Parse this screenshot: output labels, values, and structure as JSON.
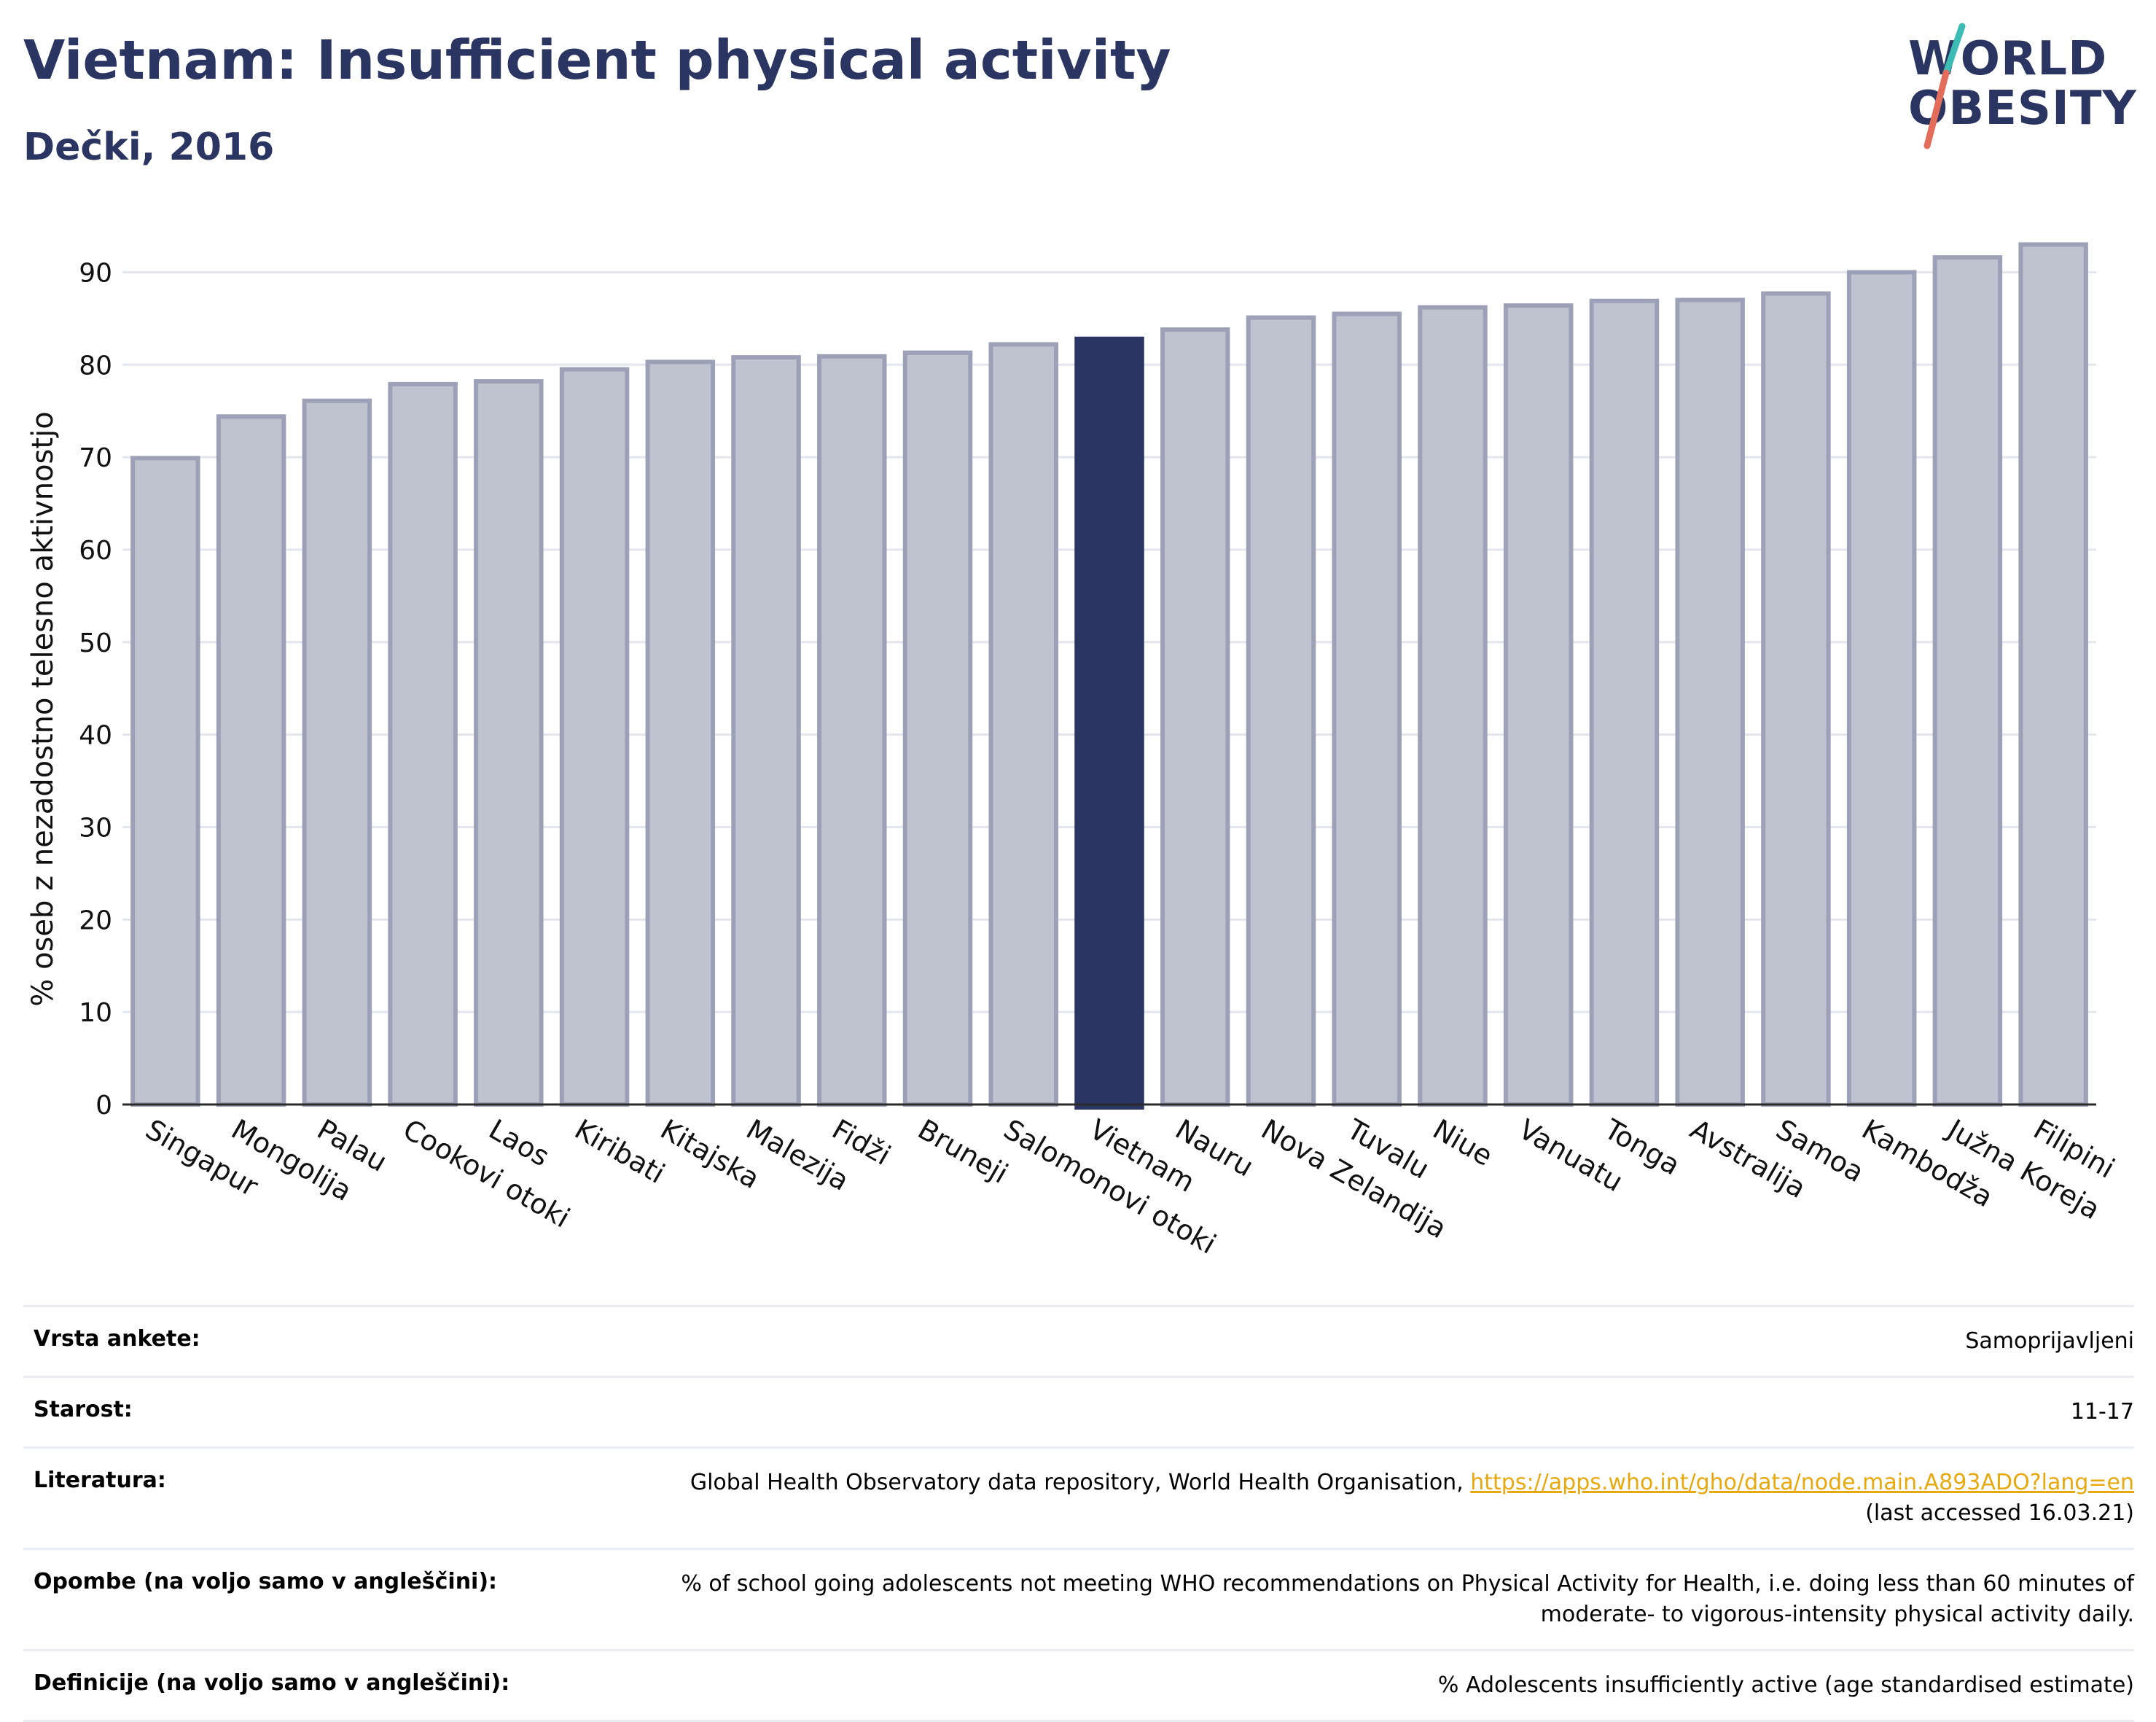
{
  "header": {
    "title": "Vietnam: Insufficient physical activity",
    "subtitle": "Dečki, 2016",
    "logo_line1": "WORLD",
    "logo_line2": "OBESITY"
  },
  "colors": {
    "title": "#2b3561",
    "bar": "#bfc2cf",
    "bar_border": "#9da1b8",
    "highlight": "#2b3561",
    "grid": "#e4e6ee",
    "link": "#e8a90f",
    "logo_teal": "#3dbcb5",
    "logo_coral": "#e46c5a"
  },
  "chart_data": {
    "type": "bar",
    "categories": [
      "Singapur",
      "Mongolija",
      "Palau",
      "Cookovi otoki",
      "Laos",
      "Kiribati",
      "Kitajska",
      "Malezija",
      "Fidži",
      "Bruneji",
      "Salomonovi otoki",
      "Vietnam",
      "Nauru",
      "Nova Zelandija",
      "Tuvalu",
      "Niue",
      "Vanuatu",
      "Tonga",
      "Avstralija",
      "Samoa",
      "Kambodža",
      "Južna Koreja",
      "Filipini"
    ],
    "values": [
      69.9,
      74.4,
      76.1,
      77.9,
      78.2,
      79.5,
      80.3,
      80.8,
      80.9,
      81.3,
      82.2,
      82.8,
      83.8,
      85.1,
      85.5,
      86.2,
      86.4,
      86.9,
      87.0,
      87.7,
      90.0,
      91.6,
      93.0
    ],
    "highlight": "Vietnam",
    "ylabel": "% oseb z nezadostno telesno aktivnostjo",
    "xlabel": "",
    "ylim": [
      0,
      95
    ],
    "yticks": [
      0,
      10,
      20,
      30,
      40,
      50,
      60,
      70,
      80,
      90
    ],
    "grid": true,
    "legend": "none"
  },
  "meta": {
    "survey_label": "Vrsta ankete:",
    "survey_value": "Samoprijavljeni",
    "age_label": "Starost:",
    "age_value": "11-17",
    "lit_label": "Literatura:",
    "lit_value_prefix": "Global Health Observatory data repository, World Health Organisation, ",
    "lit_link": "https://apps.who.int/gho/data/node.main.A893ADO?lang=en",
    "lit_value_suffix": "(last accessed 16.03.21)",
    "notes_label": "Opombe (na voljo samo v angleščini):",
    "notes_value": "% of school going adolescents not meeting WHO recommendations on Physical Activity for Health, i.e. doing less than 60 minutes of moderate- to vigorous-intensity physical activity daily.",
    "def_label": "Definicije (na voljo samo v angleščini):",
    "def_value": "% Adolescents insufficiently active (age standardised estimate)"
  }
}
